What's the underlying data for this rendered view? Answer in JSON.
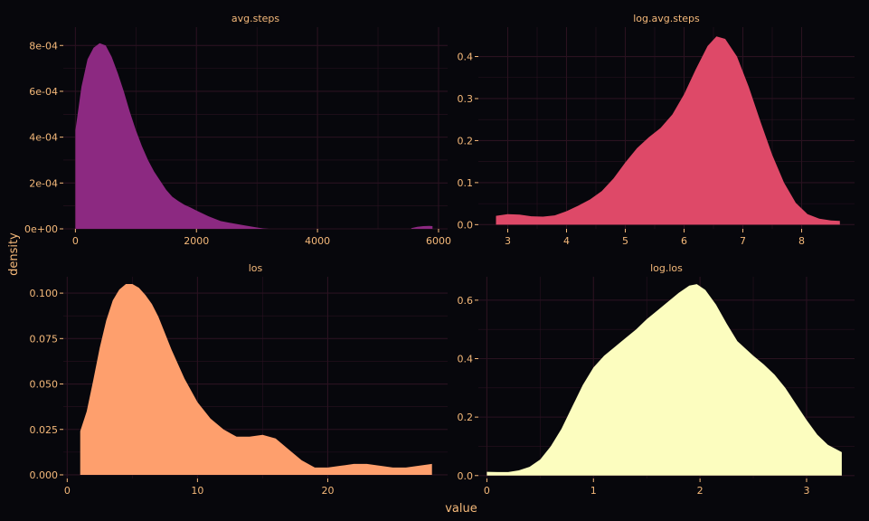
{
  "figure": {
    "xlabel": "value",
    "ylabel": "density",
    "colors": {
      "background": "#07070c",
      "grid": "#2a1220",
      "text": "#f5b97a"
    }
  },
  "chart_data": [
    {
      "type": "area",
      "title": "avg.steps",
      "color": "#8c2981",
      "xlim": [
        -200,
        6150
      ],
      "ylim": [
        0,
        0.00088
      ],
      "xticks": [
        {
          "value": 0,
          "label": "0"
        },
        {
          "value": 2000,
          "label": "2000"
        },
        {
          "value": 4000,
          "label": "4000"
        },
        {
          "value": 6000,
          "label": "6000"
        }
      ],
      "yticks": [
        {
          "value": 0,
          "label": "0e+00"
        },
        {
          "value": 0.0002,
          "label": "2e-04"
        },
        {
          "value": 0.0004,
          "label": "4e-04"
        },
        {
          "value": 0.0006,
          "label": "6e-04"
        },
        {
          "value": 0.0008,
          "label": "8e-04"
        }
      ],
      "segments": [
        {
          "x": [
            0,
            100,
            200,
            300,
            400,
            500,
            600,
            700,
            800,
            900,
            1000,
            1100,
            1200,
            1300,
            1400,
            1500,
            1600,
            1700,
            1800,
            1900,
            2000,
            2200,
            2400,
            2600,
            2800,
            3000,
            3100,
            3200
          ],
          "y": [
            0.00043,
            0.00062,
            0.00074,
            0.00079,
            0.00081,
            0.0008,
            0.00075,
            0.00068,
            0.0006,
            0.00051,
            0.00043,
            0.00036,
            0.0003,
            0.00025,
            0.00021,
            0.00017,
            0.00014,
            0.000121,
            0.000105,
            9.3e-05,
            8e-05,
            5.5e-05,
            3.4e-05,
            2.4e-05,
            1.5e-05,
            6e-06,
            2e-06,
            0.0
          ]
        },
        {
          "x": [
            5550,
            5650,
            5750,
            5850,
            5900
          ],
          "y": [
            3e-06,
            9e-06,
            1.2e-05,
            1.3e-05,
            1.2e-05
          ]
        }
      ]
    },
    {
      "type": "area",
      "title": "log.avg.steps",
      "color": "#de4968",
      "xlim": [
        2.5,
        8.9
      ],
      "ylim": [
        -0.01,
        0.47
      ],
      "xticks": [
        {
          "value": 3,
          "label": "3"
        },
        {
          "value": 4,
          "label": "4"
        },
        {
          "value": 5,
          "label": "5"
        },
        {
          "value": 6,
          "label": "6"
        },
        {
          "value": 7,
          "label": "7"
        },
        {
          "value": 8,
          "label": "8"
        }
      ],
      "yticks": [
        {
          "value": 0,
          "label": "0.0"
        },
        {
          "value": 0.1,
          "label": "0.1"
        },
        {
          "value": 0.2,
          "label": "0.2"
        },
        {
          "value": 0.3,
          "label": "0.3"
        },
        {
          "value": 0.4,
          "label": "0.4"
        }
      ],
      "segments": [
        {
          "x": [
            2.8,
            3.0,
            3.2,
            3.4,
            3.6,
            3.8,
            4.0,
            4.2,
            4.4,
            4.6,
            4.8,
            5.0,
            5.2,
            5.4,
            5.6,
            5.8,
            6.0,
            6.2,
            6.4,
            6.55,
            6.7,
            6.9,
            7.1,
            7.3,
            7.5,
            7.7,
            7.9,
            8.1,
            8.3,
            8.5,
            8.65
          ],
          "y": [
            0.021,
            0.025,
            0.024,
            0.02,
            0.019,
            0.022,
            0.032,
            0.045,
            0.06,
            0.08,
            0.11,
            0.148,
            0.182,
            0.208,
            0.23,
            0.262,
            0.31,
            0.37,
            0.425,
            0.448,
            0.442,
            0.4,
            0.328,
            0.245,
            0.166,
            0.1,
            0.052,
            0.025,
            0.014,
            0.01,
            0.009
          ]
        }
      ]
    },
    {
      "type": "area",
      "title": "los",
      "color": "#fe9f6d",
      "xlim": [
        -0.3,
        29.2
      ],
      "ylim": [
        -0.002,
        0.109
      ],
      "xticks": [
        {
          "value": 0,
          "label": "0"
        },
        {
          "value": 10,
          "label": "10"
        },
        {
          "value": 20,
          "label": "20"
        }
      ],
      "yticks": [
        {
          "value": 0,
          "label": "0.000"
        },
        {
          "value": 0.025,
          "label": "0.025"
        },
        {
          "value": 0.05,
          "label": "0.050"
        },
        {
          "value": 0.075,
          "label": "0.075"
        },
        {
          "value": 0.1,
          "label": "0.100"
        }
      ],
      "segments": [
        {
          "x": [
            1,
            1.5,
            2,
            2.5,
            3,
            3.5,
            4,
            4.5,
            5,
            5.5,
            6,
            6.5,
            7,
            7.5,
            8,
            9,
            10,
            11,
            12,
            13,
            14,
            15,
            16,
            17,
            18,
            19,
            20,
            21,
            22,
            23,
            24,
            25,
            26,
            27,
            28
          ],
          "y": [
            0.024,
            0.035,
            0.052,
            0.07,
            0.085,
            0.096,
            0.102,
            0.105,
            0.105,
            0.103,
            0.099,
            0.094,
            0.087,
            0.078,
            0.069,
            0.053,
            0.04,
            0.031,
            0.025,
            0.021,
            0.021,
            0.022,
            0.02,
            0.014,
            0.008,
            0.004,
            0.004,
            0.005,
            0.006,
            0.006,
            0.005,
            0.004,
            0.004,
            0.005,
            0.006
          ]
        }
      ]
    },
    {
      "type": "area",
      "title": "log.los",
      "color": "#fcfdbf",
      "xlim": [
        -0.08,
        3.45
      ],
      "ylim": [
        -0.01,
        0.68
      ],
      "xticks": [
        {
          "value": 0,
          "label": "0"
        },
        {
          "value": 1,
          "label": "1"
        },
        {
          "value": 2,
          "label": "2"
        },
        {
          "value": 3,
          "label": "3"
        }
      ],
      "yticks": [
        {
          "value": 0,
          "label": "0.0"
        },
        {
          "value": 0.2,
          "label": "0.2"
        },
        {
          "value": 0.4,
          "label": "0.4"
        },
        {
          "value": 0.6,
          "label": "0.6"
        }
      ],
      "segments": [
        {
          "x": [
            0.0,
            0.1,
            0.2,
            0.3,
            0.4,
            0.5,
            0.6,
            0.7,
            0.8,
            0.9,
            1.0,
            1.1,
            1.2,
            1.3,
            1.4,
            1.5,
            1.6,
            1.7,
            1.8,
            1.9,
            1.97,
            2.05,
            2.15,
            2.25,
            2.35,
            2.5,
            2.6,
            2.7,
            2.8,
            2.9,
            3.0,
            3.1,
            3.2,
            3.33
          ],
          "y": [
            0.013,
            0.012,
            0.012,
            0.018,
            0.03,
            0.055,
            0.1,
            0.16,
            0.235,
            0.31,
            0.37,
            0.41,
            0.44,
            0.47,
            0.5,
            0.535,
            0.565,
            0.595,
            0.625,
            0.65,
            0.655,
            0.635,
            0.585,
            0.52,
            0.46,
            0.41,
            0.38,
            0.345,
            0.3,
            0.245,
            0.19,
            0.14,
            0.105,
            0.08
          ]
        }
      ]
    }
  ]
}
